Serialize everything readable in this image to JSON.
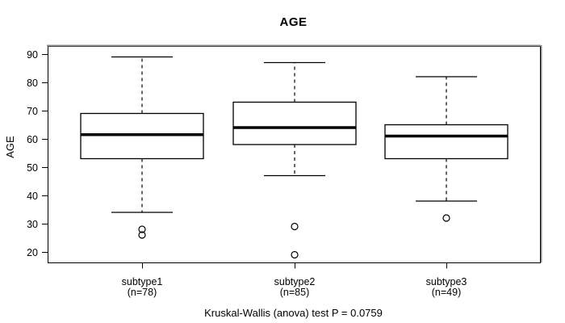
{
  "chart_data": {
    "type": "boxplot",
    "title": "AGE",
    "ylabel": "AGE",
    "xlabel": "",
    "caption": "Kruskal-Wallis (anova) test P = 0.0759",
    "y_ticks": [
      20,
      30,
      40,
      50,
      60,
      70,
      80,
      90
    ],
    "ylim": [
      16,
      93
    ],
    "grid": "off",
    "whisker_line_style": "dashed",
    "categories": [
      {
        "label": "subtype1",
        "n_label": "(n=78)"
      },
      {
        "label": "subtype2",
        "n_label": "(n=85)"
      },
      {
        "label": "subtype3",
        "n_label": "(n=49)"
      }
    ],
    "series": [
      {
        "name": "subtype1",
        "n": 78,
        "whisker_low": 34,
        "q1": 53,
        "median": 61.5,
        "q3": 69,
        "whisker_high": 89,
        "outliers": [
          28,
          26
        ]
      },
      {
        "name": "subtype2",
        "n": 85,
        "whisker_low": 47,
        "q1": 58,
        "median": 64,
        "q3": 73,
        "whisker_high": 87,
        "outliers": [
          29,
          19
        ]
      },
      {
        "name": "subtype3",
        "n": 49,
        "whisker_low": 38,
        "q1": 53,
        "median": 61,
        "q3": 65,
        "whisker_high": 82,
        "outliers": [
          32
        ]
      }
    ],
    "colors": {
      "stroke": "#000000",
      "box_fill": "#ffffff",
      "background": "#ffffff",
      "border_shadow": "#8c8c8c"
    }
  }
}
